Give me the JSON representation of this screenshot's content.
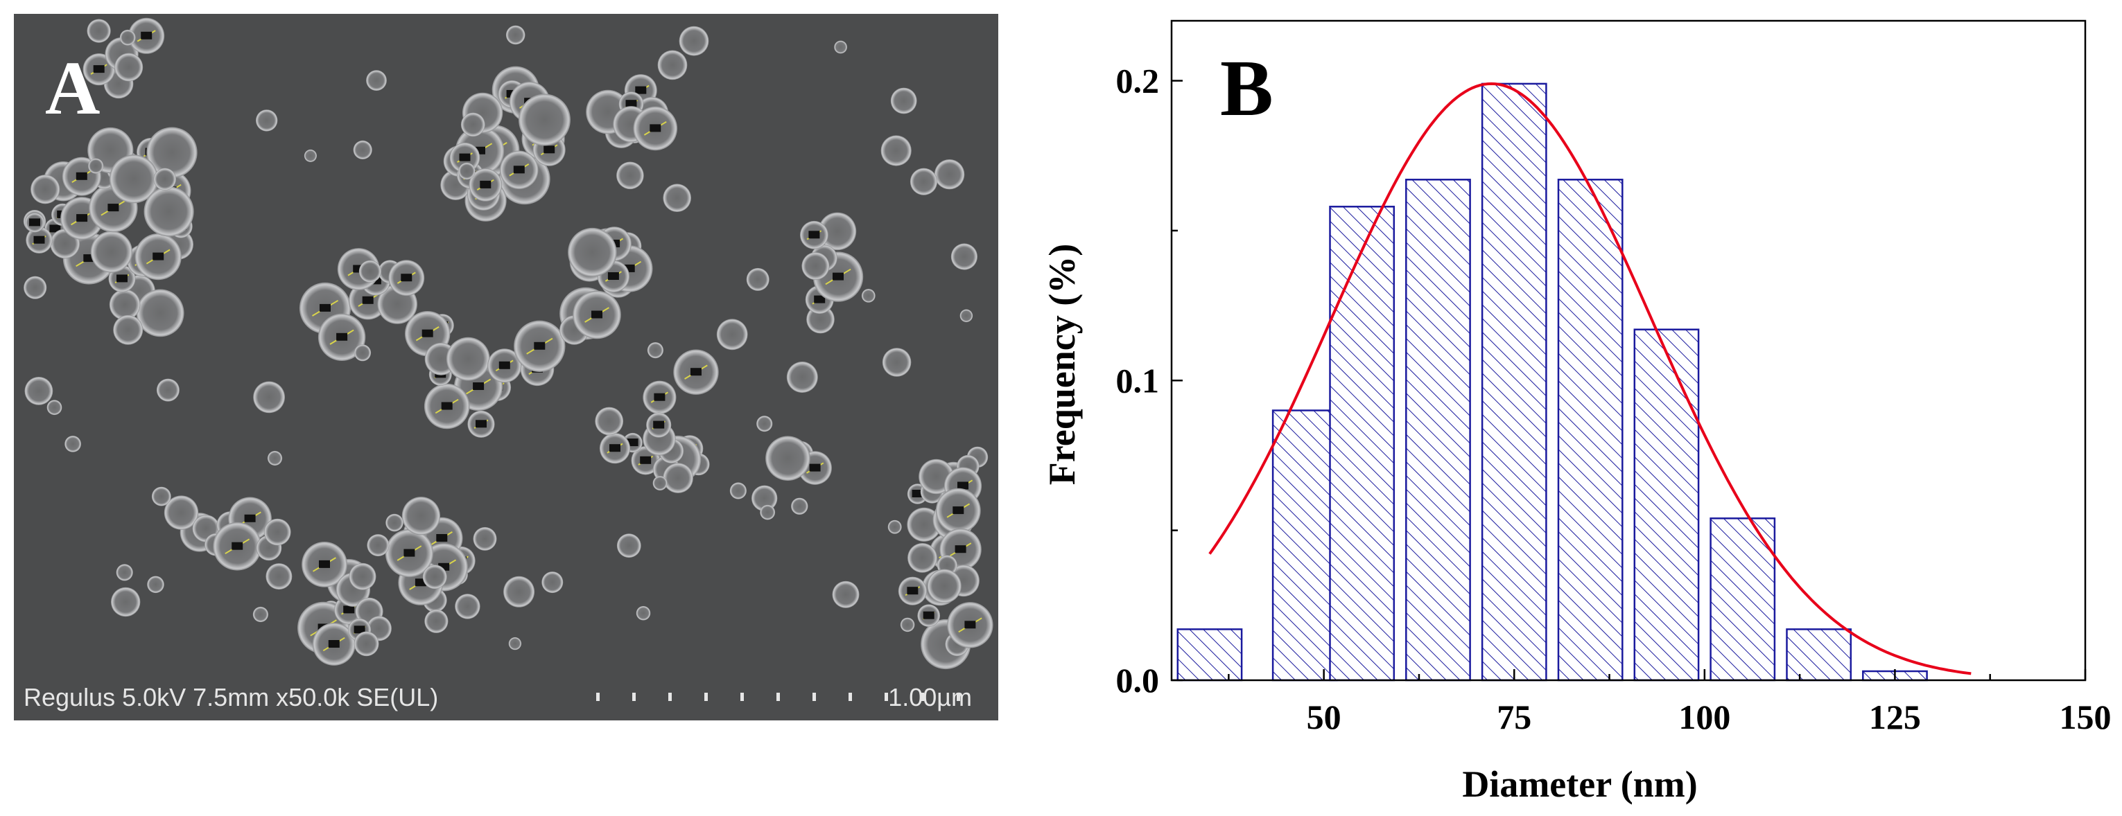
{
  "sem": {
    "panel_letter": "A",
    "info": "Regulus 5.0kV 7.5mm x50.0k SE(UL)",
    "scale_label": "1.00µm"
  },
  "chart": {
    "panel_letter": "B"
  },
  "chart_data": {
    "type": "bar",
    "title": "",
    "xlabel": "Diameter (nm)",
    "ylabel": "Frequency (%)",
    "xlim": [
      30,
      150
    ],
    "ylim": [
      0,
      0.22
    ],
    "xticks": [
      50,
      75,
      100,
      125,
      150
    ],
    "xtick_labels": [
      "50",
      "75",
      "100",
      "125",
      "150"
    ],
    "yticks": [
      0.0,
      0.1,
      0.2
    ],
    "ytick_labels": [
      "0.0",
      "0.1",
      "0.2"
    ],
    "bin_width": 10,
    "bin_centers": [
      35,
      47.5,
      55,
      65,
      75,
      85,
      95,
      105,
      115,
      125
    ],
    "values": [
      0.017,
      0.09,
      0.158,
      0.167,
      0.199,
      0.167,
      0.117,
      0.054,
      0.017,
      0.003
    ],
    "bar_color": "#1a1a9e",
    "fit_curve": {
      "type": "gaussian",
      "color": "#e8001a",
      "peak_x": 72,
      "peak_y": 0.199,
      "sigma": 21,
      "x_range": [
        35,
        135
      ]
    }
  }
}
